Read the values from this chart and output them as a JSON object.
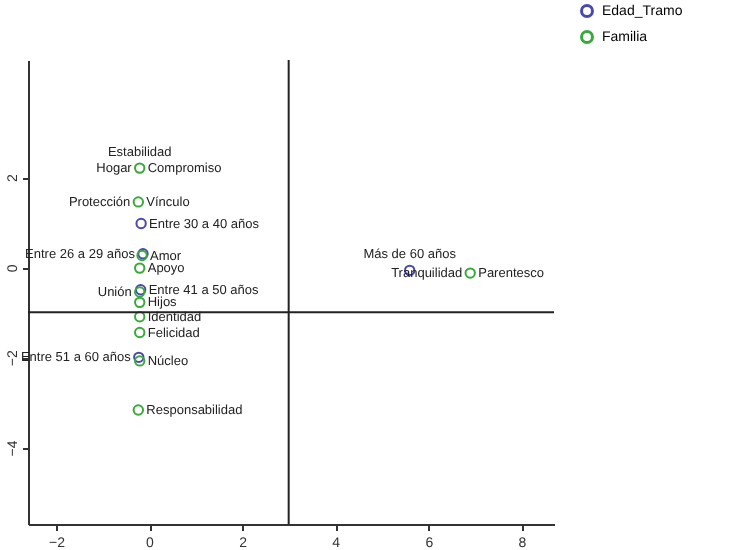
{
  "chart_data": {
    "type": "scatter",
    "xlim": [
      -2.6,
      8.7
    ],
    "ylim": [
      -5.7,
      4.6
    ],
    "xticks": [
      -2,
      0,
      2,
      4,
      6,
      8
    ],
    "yticks": [
      -4,
      -2,
      0,
      2
    ],
    "grid": false,
    "legend": "top right",
    "marker": "circle",
    "series": [
      {
        "name": "Edad_Tramo",
        "color": "#4848b0",
        "x": [
          -0.17,
          -0.13,
          -0.18,
          -0.22,
          5.6
        ],
        "values": [
          0.97,
          0.3,
          -0.5,
          -2.0,
          -0.07
        ]
      },
      {
        "name": "Familia",
        "color": "#3aa83a",
        "x": [
          -0.2,
          -0.23,
          -0.15,
          -0.2,
          -0.2,
          -0.2,
          -0.2,
          -0.2,
          -0.2,
          -0.23,
          6.9
        ],
        "values": [
          2.2,
          1.45,
          0.26,
          -0.02,
          -0.55,
          -0.78,
          -1.1,
          -1.45,
          -2.08,
          -3.17,
          -0.13
        ]
      }
    ],
    "ref_lines": [
      {
        "axis": "y",
        "value": -1.0
      },
      {
        "axis": "x",
        "value": 3.0
      }
    ],
    "annotations": [
      {
        "text": "Compromiso",
        "x": -0.2,
        "y": 2.2
      },
      {
        "text": "Hogar",
        "x": -0.2,
        "y": 2.2
      },
      {
        "text": "Estabilidad",
        "x": -0.2,
        "y": 2.2
      },
      {
        "text": "Vínculo",
        "x": -0.23,
        "y": 1.45
      },
      {
        "text": "Protección",
        "x": -0.23,
        "y": 1.45
      },
      {
        "text": "Entre 30 a 40 años",
        "x": -0.17,
        "y": 0.97
      },
      {
        "text": "Amor",
        "x": -0.15,
        "y": 0.26
      },
      {
        "text": "Entre 26 a 29 años",
        "x": -0.13,
        "y": 0.3
      },
      {
        "text": "Apoyo",
        "x": -0.2,
        "y": -0.02
      },
      {
        "text": "Entre 41 a 50 años",
        "x": -0.18,
        "y": -0.5
      },
      {
        "text": "Unión",
        "x": -0.2,
        "y": -0.55
      },
      {
        "text": "Hijos",
        "x": -0.2,
        "y": -0.78
      },
      {
        "text": "Felicidad",
        "x": -0.2,
        "y": -1.45
      },
      {
        "text": "Identidad",
        "x": -0.2,
        "y": -1.1
      },
      {
        "text": "Núcleo",
        "x": -0.2,
        "y": -2.08
      },
      {
        "text": "Entre 51 a 60 años",
        "x": -0.22,
        "y": -2.0
      },
      {
        "text": "Responsabilidad",
        "x": -0.23,
        "y": -3.17
      },
      {
        "text": "Parentesco",
        "x": 6.9,
        "y": -0.13
      },
      {
        "text": "Tranquilidad",
        "x": 6.9,
        "y": -0.13
      },
      {
        "text": "Más de 60 años",
        "x": 5.6,
        "y": -0.07
      }
    ]
  }
}
